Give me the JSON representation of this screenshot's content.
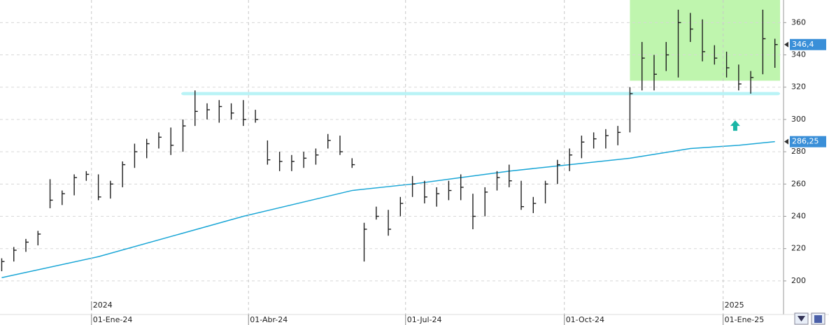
{
  "chart_data": {
    "type": "ohlc",
    "x": [
      "2023-11-10",
      "2023-11-17",
      "2023-11-24",
      "2023-12-01",
      "2023-12-08",
      "2023-12-15",
      "2023-12-22",
      "2023-12-29",
      "2024-01-05",
      "2024-01-12",
      "2024-01-19",
      "2024-01-26",
      "2024-02-02",
      "2024-02-09",
      "2024-02-16",
      "2024-02-23",
      "2024-03-01",
      "2024-03-08",
      "2024-03-15",
      "2024-03-22",
      "2024-03-29",
      "2024-04-05",
      "2024-04-12",
      "2024-04-19",
      "2024-04-26",
      "2024-05-03",
      "2024-05-10",
      "2024-05-17",
      "2024-05-24",
      "2024-05-31",
      "2024-06-07",
      "2024-06-14",
      "2024-06-21",
      "2024-06-28",
      "2024-07-05",
      "2024-07-12",
      "2024-07-19",
      "2024-07-26",
      "2024-08-02",
      "2024-08-09",
      "2024-08-16",
      "2024-08-23",
      "2024-08-30",
      "2024-09-06",
      "2024-09-13",
      "2024-09-20",
      "2024-09-27",
      "2024-10-04",
      "2024-10-11",
      "2024-10-18",
      "2024-10-25",
      "2024-11-01",
      "2024-11-08",
      "2024-11-15",
      "2024-11-22",
      "2024-11-29",
      "2024-12-06",
      "2024-12-13",
      "2024-12-20",
      "2024-12-27",
      "2025-01-03",
      "2025-01-10",
      "2025-01-17",
      "2025-01-24",
      "2025-01-31"
    ],
    "high": [
      214,
      221,
      226,
      231,
      263,
      256,
      266,
      268,
      266,
      262,
      274,
      285,
      288,
      292,
      295,
      300,
      318,
      310,
      312,
      310,
      312,
      306,
      287,
      280,
      278,
      280,
      282,
      291,
      290,
      276,
      236,
      246,
      244,
      252,
      265,
      262,
      258,
      262,
      266,
      254,
      258,
      268,
      272,
      262,
      252,
      262,
      275,
      282,
      290,
      292,
      294,
      296,
      320,
      348,
      340,
      348,
      368,
      366,
      362,
      346,
      342,
      334,
      330,
      368,
      350
    ],
    "low": [
      206,
      212,
      218,
      222,
      245,
      247,
      253,
      262,
      250,
      251,
      258,
      270,
      276,
      282,
      278,
      280,
      296,
      300,
      298,
      300,
      296,
      298,
      272,
      268,
      268,
      270,
      272,
      282,
      278,
      270,
      212,
      238,
      228,
      240,
      252,
      248,
      246,
      250,
      250,
      232,
      240,
      256,
      258,
      244,
      242,
      248,
      260,
      268,
      276,
      282,
      282,
      284,
      292,
      318,
      318,
      330,
      326,
      348,
      336,
      334,
      326,
      318,
      316,
      328,
      332
    ],
    "close": [
      212,
      219,
      224,
      229,
      250,
      254,
      264,
      266,
      252,
      260,
      272,
      280,
      285,
      289,
      284,
      296,
      305,
      306,
      308,
      304,
      300,
      300,
      275,
      274,
      274,
      276,
      278,
      287,
      280,
      272,
      232,
      240,
      232,
      248,
      260,
      252,
      254,
      256,
      258,
      240,
      255,
      264,
      262,
      246,
      248,
      260,
      272,
      278,
      286,
      288,
      290,
      292,
      316,
      338,
      328,
      340,
      360,
      356,
      342,
      338,
      332,
      322,
      326,
      350,
      346.4
    ],
    "color": "#1e1e1e",
    "ma": {
      "x": [
        "2023-11-10",
        "2024-01-05",
        "2024-03-29",
        "2024-05-31",
        "2024-07-05",
        "2024-08-30",
        "2024-10-04",
        "2024-11-08",
        "2024-12-13",
        "2025-01-10",
        "2025-01-31"
      ],
      "values": [
        202,
        215,
        240,
        256,
        260,
        268,
        272,
        276,
        282,
        284,
        286.25
      ],
      "color": "#1aa6d6"
    },
    "last_price": {
      "value": 346.4,
      "label": "346,4"
    },
    "ma_label": {
      "value": 286.25,
      "label": "286,25"
    },
    "resistance_zone": {
      "x": [
        "2024-11-08",
        "2025-02-03"
      ],
      "y": [
        324,
        374
      ],
      "color": "#b4f3a0"
    },
    "support_band": {
      "x": [
        "2024-02-22",
        "2025-02-03"
      ],
      "y": [
        315,
        317
      ],
      "color": "#b9f3f6"
    },
    "arrow": {
      "x": "2025-01-08",
      "y": 296,
      "color": "#19b5a5"
    },
    "xlim": [
      "2023-11-09",
      "2025-02-05"
    ],
    "ylim": [
      190,
      374
    ],
    "yticks": [
      200,
      220,
      240,
      260,
      280,
      300,
      320,
      340,
      360
    ],
    "xticks": [
      {
        "value": "2024-01-01",
        "label": "01-Ene-24"
      },
      {
        "value": "2024-04-01",
        "label": "01-Abr-24"
      },
      {
        "value": "2024-07-01",
        "label": "01-Jul-24"
      },
      {
        "value": "2024-10-01",
        "label": "01-Oct-24"
      },
      {
        "value": "2025-01-01",
        "label": "01-Ene-25"
      }
    ],
    "year_ticks": [
      {
        "value": "2024-01-01",
        "label": "2024"
      },
      {
        "value": "2025-01-01",
        "label": "2025"
      }
    ],
    "grid": true
  }
}
